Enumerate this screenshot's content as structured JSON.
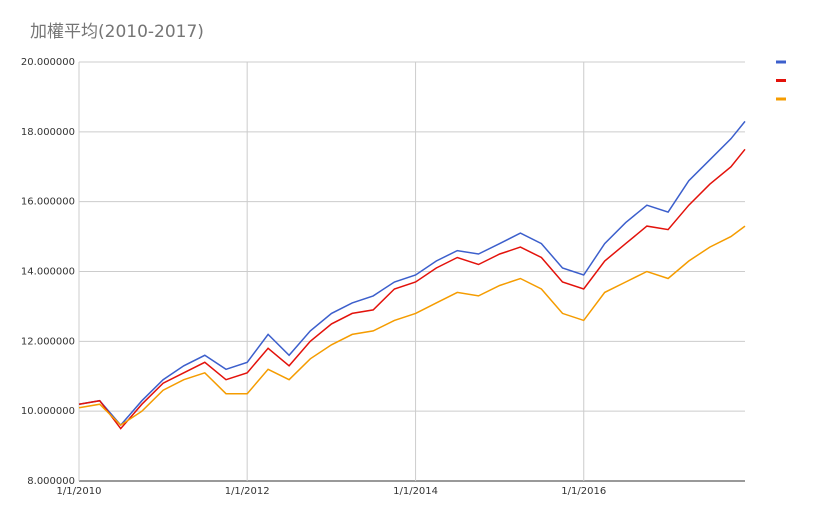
{
  "chart_data": {
    "type": "line",
    "title": "加權平均(2010-2017)",
    "x": [
      "2010-01-01",
      "2010-04-01",
      "2010-07-01",
      "2010-10-01",
      "2011-01-01",
      "2011-04-01",
      "2011-07-01",
      "2011-10-01",
      "2012-01-01",
      "2012-04-01",
      "2012-07-01",
      "2012-10-01",
      "2013-01-01",
      "2013-04-01",
      "2013-07-01",
      "2013-10-01",
      "2014-01-01",
      "2014-04-01",
      "2014-07-01",
      "2014-10-01",
      "2015-01-01",
      "2015-04-01",
      "2015-07-01",
      "2015-10-01",
      "2016-01-01",
      "2016-04-01",
      "2016-07-01",
      "2016-10-01",
      "2017-01-01",
      "2017-04-01",
      "2017-07-01",
      "2017-10-01",
      "2017-12-01"
    ],
    "series": [
      {
        "color": "#3c5fcc",
        "values": [
          10.2,
          10.3,
          9.6,
          10.3,
          10.9,
          11.3,
          11.6,
          11.2,
          11.4,
          12.2,
          11.6,
          12.3,
          12.8,
          13.1,
          13.3,
          13.7,
          13.9,
          14.3,
          14.6,
          14.5,
          14.8,
          15.1,
          14.8,
          14.1,
          13.9,
          14.8,
          15.4,
          15.9,
          15.7,
          16.6,
          17.2,
          17.8,
          18.3
        ]
      },
      {
        "color": "#e3120b",
        "values": [
          10.2,
          10.3,
          9.5,
          10.2,
          10.8,
          11.1,
          11.4,
          10.9,
          11.1,
          11.8,
          11.3,
          12.0,
          12.5,
          12.8,
          12.9,
          13.5,
          13.7,
          14.1,
          14.4,
          14.2,
          14.5,
          14.7,
          14.4,
          13.7,
          13.5,
          14.3,
          14.8,
          15.3,
          15.2,
          15.9,
          16.5,
          17.0,
          17.5
        ]
      },
      {
        "color": "#f59c00",
        "values": [
          10.1,
          10.2,
          9.6,
          10.0,
          10.6,
          10.9,
          11.1,
          10.5,
          10.5,
          11.2,
          10.9,
          11.5,
          11.9,
          12.2,
          12.3,
          12.6,
          12.8,
          13.1,
          13.4,
          13.3,
          13.6,
          13.8,
          13.5,
          12.8,
          12.6,
          13.4,
          13.7,
          14.0,
          13.8,
          14.3,
          14.7,
          15.0,
          15.3
        ]
      }
    ],
    "xlim": [
      "2010-01-01",
      "2017-12-01"
    ],
    "xticks": [
      {
        "value": "2010-01-01",
        "label": "1/1/2010"
      },
      {
        "value": "2012-01-01",
        "label": "1/1/2012"
      },
      {
        "value": "2014-01-01",
        "label": "1/1/2014"
      },
      {
        "value": "2016-01-01",
        "label": "1/1/2016"
      }
    ],
    "ylim": [
      8,
      20
    ],
    "yticks": [
      {
        "value": 8,
        "label": "8.000000"
      },
      {
        "value": 10,
        "label": "10.000000"
      },
      {
        "value": 12,
        "label": "12.000000"
      },
      {
        "value": 14,
        "label": "14.000000"
      },
      {
        "value": 16,
        "label": "16.000000"
      },
      {
        "value": 18,
        "label": "18.000000"
      },
      {
        "value": 20,
        "label": "20.000000"
      }
    ],
    "grid": true,
    "legend": "top-right"
  }
}
